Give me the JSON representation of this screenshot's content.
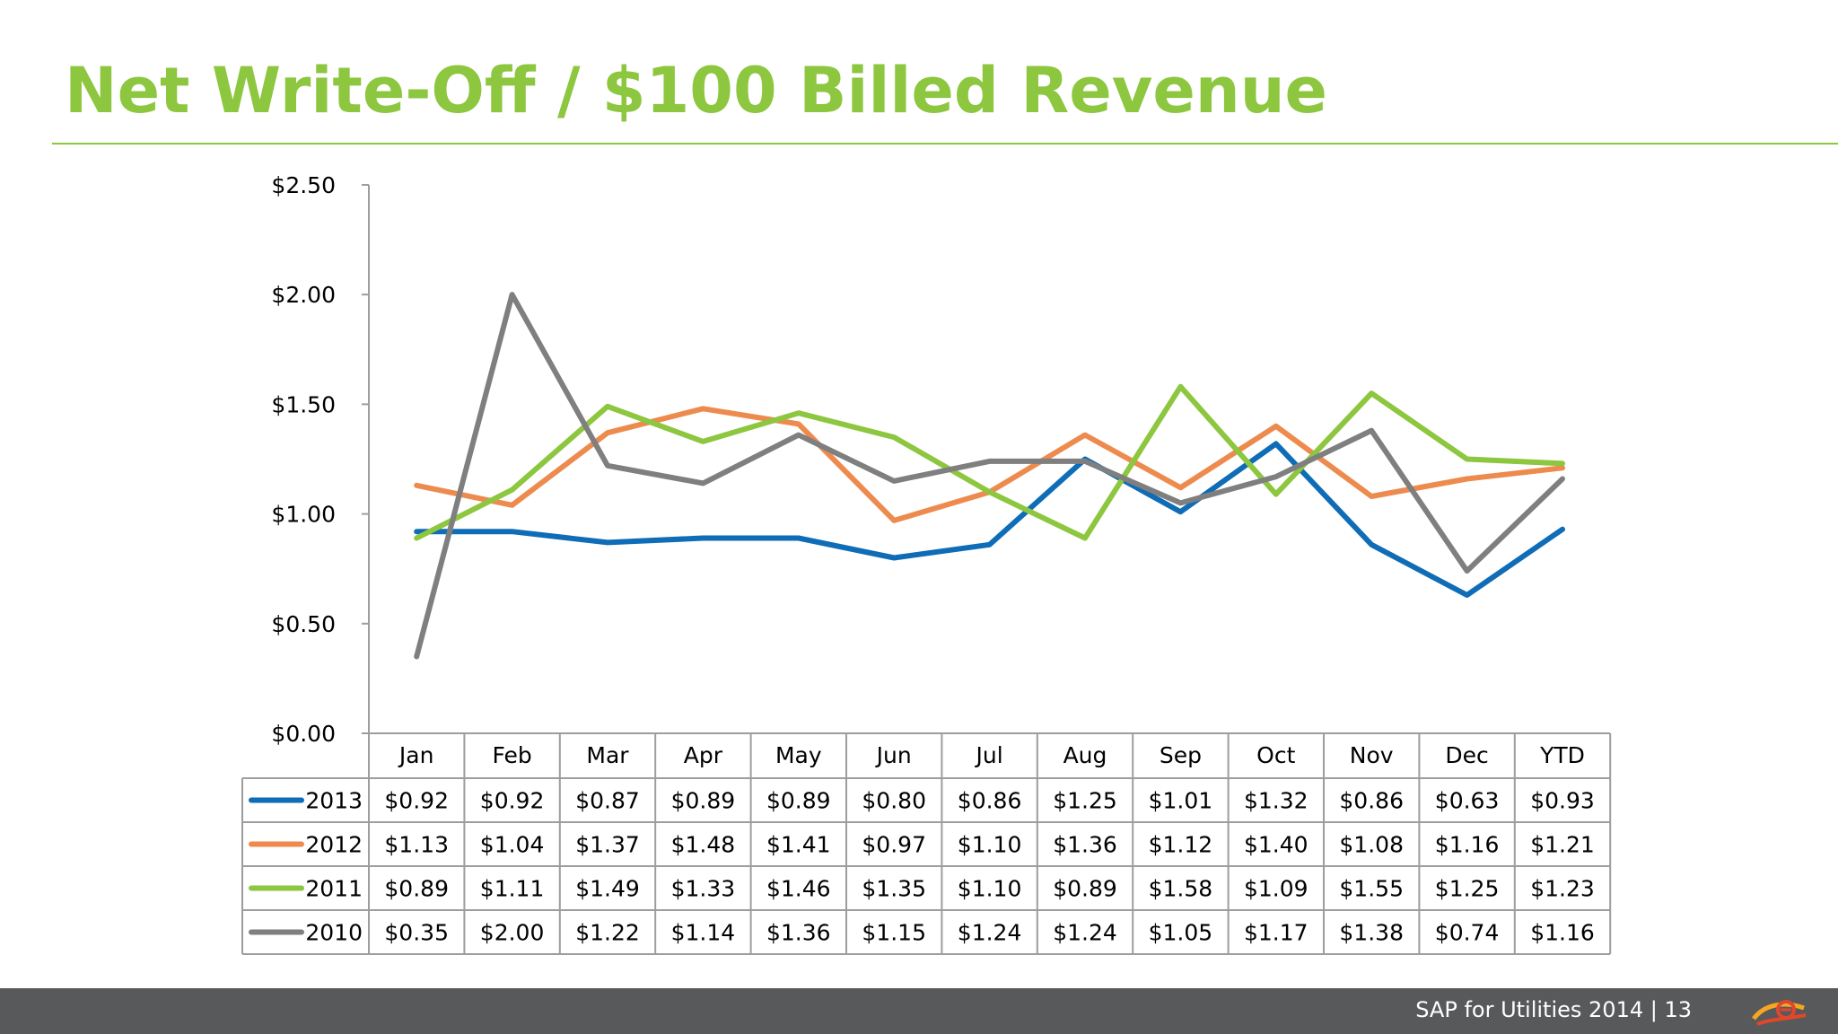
{
  "slide": {
    "title": "Net Write-Off / $100 Billed Revenue",
    "footer_text": "SAP for Utilities 2014 |  13",
    "logo_icon": "utility-logo-icon",
    "colors": {
      "accent": "#8dc63f",
      "footer_bg": "#58595b"
    }
  },
  "chart_data": {
    "type": "line",
    "title": "",
    "xlabel": "",
    "ylabel": "",
    "ylim": [
      0,
      2.5
    ],
    "y_ticks": [
      "$0.00",
      "$0.50",
      "$1.00",
      "$1.50",
      "$2.00",
      "$2.50"
    ],
    "categories": [
      "Jan",
      "Feb",
      "Mar",
      "Apr",
      "May",
      "Jun",
      "Jul",
      "Aug",
      "Sep",
      "Oct",
      "Nov",
      "Dec",
      "YTD"
    ],
    "grid": false,
    "legend": "data-table",
    "series": [
      {
        "name": "2013",
        "color": "#0f6cb6",
        "values": [
          0.92,
          0.92,
          0.87,
          0.89,
          0.89,
          0.8,
          0.86,
          1.25,
          1.01,
          1.32,
          0.86,
          0.63,
          0.93
        ],
        "labels": [
          "$0.92",
          "$0.92",
          "$0.87",
          "$0.89",
          "$0.89",
          "$0.80",
          "$0.86",
          "$1.25",
          "$1.01",
          "$1.32",
          "$0.86",
          "$0.63",
          "$0.93"
        ]
      },
      {
        "name": "2012",
        "color": "#ed8b4f",
        "values": [
          1.13,
          1.04,
          1.37,
          1.48,
          1.41,
          0.97,
          1.1,
          1.36,
          1.12,
          1.4,
          1.08,
          1.16,
          1.21
        ],
        "labels": [
          "$1.13",
          "$1.04",
          "$1.37",
          "$1.48",
          "$1.41",
          "$0.97",
          "$1.10",
          "$1.36",
          "$1.12",
          "$1.40",
          "$1.08",
          "$1.16",
          "$1.21"
        ]
      },
      {
        "name": "2011",
        "color": "#8dc63f",
        "values": [
          0.89,
          1.11,
          1.49,
          1.33,
          1.46,
          1.35,
          1.1,
          0.89,
          1.58,
          1.09,
          1.55,
          1.25,
          1.23
        ],
        "labels": [
          "$0.89",
          "$1.11",
          "$1.49",
          "$1.33",
          "$1.46",
          "$1.35",
          "$1.10",
          "$0.89",
          "$1.58",
          "$1.09",
          "$1.55",
          "$1.25",
          "$1.23"
        ]
      },
      {
        "name": "2010",
        "color": "#7f7f7f",
        "values": [
          0.35,
          2.0,
          1.22,
          1.14,
          1.36,
          1.15,
          1.24,
          1.24,
          1.05,
          1.17,
          1.38,
          0.74,
          1.16
        ],
        "labels": [
          "$0.35",
          "$2.00",
          "$1.22",
          "$1.14",
          "$1.36",
          "$1.15",
          "$1.24",
          "$1.24",
          "$1.05",
          "$1.17",
          "$1.38",
          "$0.74",
          "$1.16"
        ]
      }
    ]
  }
}
